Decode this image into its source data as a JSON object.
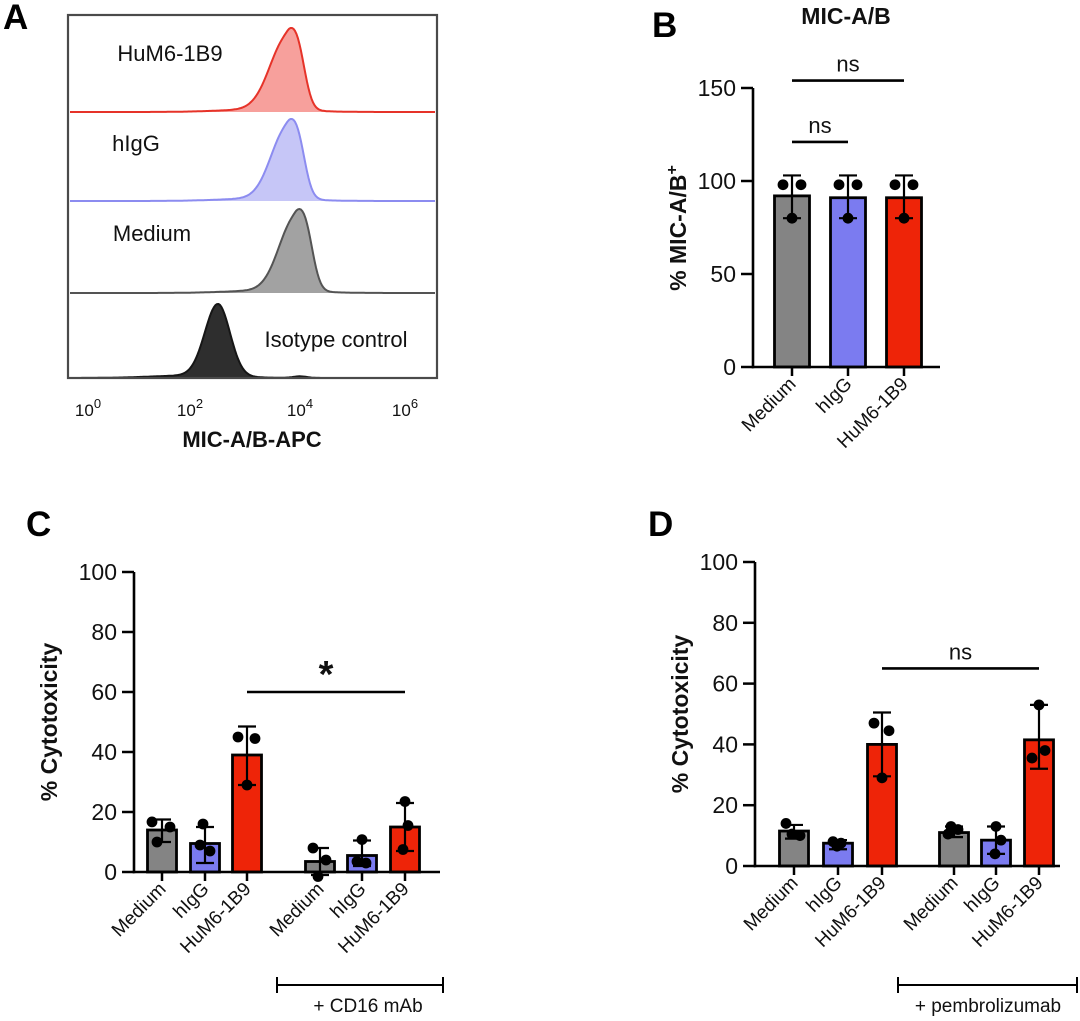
{
  "panel_letters": [
    "A",
    "B",
    "C",
    "D"
  ],
  "colors": {
    "gray": "#848484",
    "blue": "#7b7bf0",
    "red": "#ee2408",
    "ink": "#111111"
  },
  "chart_data": [
    {
      "panel": "A",
      "type": "area",
      "subtype": "flow-cytometry-histogram-stack",
      "xlabel": "MIC-A/B-APC",
      "x_scale": "log10",
      "xticks": [
        {
          "base": "10",
          "exp": "0"
        },
        {
          "base": "10",
          "exp": "2"
        },
        {
          "base": "10",
          "exp": "4"
        },
        {
          "base": "10",
          "exp": "6"
        }
      ],
      "series": [
        {
          "name": "HuM6-1B9",
          "peak_log10": 3.77,
          "stroke": "#e63329",
          "fill": "#f7a09c"
        },
        {
          "name": "hIgG",
          "peak_log10": 3.77,
          "stroke": "#8c8cf0",
          "fill": "#c6c6f7"
        },
        {
          "name": "Medium",
          "peak_log10": 3.92,
          "stroke": "#545454",
          "fill": "#a2a2a2"
        },
        {
          "name": "Isotype control",
          "peak_log10": 2.46,
          "stroke": "#161616",
          "fill": "#2e2e2e"
        }
      ]
    },
    {
      "panel": "B",
      "type": "bar",
      "title": "MIC-A/B",
      "ylabel": "% MIC-A/B",
      "ylabel_sup": "+",
      "ylim": [
        0,
        150
      ],
      "yticks": [
        0,
        50,
        100,
        150
      ],
      "categories": [
        "Medium",
        "hIgG",
        "HuM6-1B9"
      ],
      "bar_colors": [
        "#848484",
        "#7b7bf0",
        "#ee2408"
      ],
      "values": [
        92,
        91,
        91
      ],
      "errors": [
        [
          80,
          103
        ],
        [
          80,
          103
        ],
        [
          80,
          103
        ]
      ],
      "points": [
        [
          [
            98,
            -9
          ],
          [
            98,
            9
          ],
          [
            80,
            0
          ]
        ],
        [
          [
            98,
            -9
          ],
          [
            98,
            9
          ],
          [
            80,
            0
          ]
        ],
        [
          [
            98,
            -9
          ],
          [
            98,
            9
          ],
          [
            80,
            0
          ]
        ]
      ],
      "significance": [
        {
          "from": 0,
          "to": 1,
          "label": "ns",
          "y": 121
        },
        {
          "from": 0,
          "to": 2,
          "label": "ns",
          "y": 154
        }
      ]
    },
    {
      "panel": "C",
      "type": "bar",
      "title": "",
      "ylabel": "% Cytotoxicity",
      "ylim": [
        0,
        100
      ],
      "yticks": [
        0,
        20,
        40,
        60,
        80,
        100
      ],
      "categories": [
        "Medium",
        "hIgG",
        "HuM6-1B9",
        "Medium",
        "hIgG",
        "HuM6-1B9"
      ],
      "bar_colors": [
        "#848484",
        "#7b7bf0",
        "#ee2408",
        "#848484",
        "#7b7bf0",
        "#ee2408"
      ],
      "values": [
        14,
        9.5,
        39,
        3.5,
        5.5,
        15
      ],
      "errors": [
        [
          10,
          17.5
        ],
        [
          3,
          15
        ],
        [
          29,
          48.5
        ],
        [
          -1,
          8
        ],
        [
          2,
          10.5
        ],
        [
          7,
          23
        ]
      ],
      "points": [
        [
          [
            16.7,
            -10
          ],
          [
            15,
            8
          ],
          [
            10,
            -5
          ]
        ],
        [
          [
            16,
            -2
          ],
          [
            9,
            -5
          ],
          [
            7,
            5
          ]
        ],
        [
          [
            45,
            -9
          ],
          [
            44.5,
            8
          ],
          [
            29,
            0
          ]
        ],
        [
          [
            8,
            -7
          ],
          [
            4,
            6
          ],
          [
            -1.5,
            -2
          ]
        ],
        [
          [
            10.8,
            0
          ],
          [
            3.5,
            -5
          ],
          [
            3,
            4
          ]
        ],
        [
          [
            23.5,
            0
          ],
          [
            15.5,
            3
          ],
          [
            7.5,
            -2
          ]
        ]
      ],
      "significance": [
        {
          "from": 2,
          "to": 5,
          "label": "*",
          "y": 60
        }
      ],
      "group_bracket": {
        "label": "+ CD16 mAb",
        "from": 3,
        "to": 5
      }
    },
    {
      "panel": "D",
      "type": "bar",
      "title": "",
      "ylabel": "% Cytotoxicity",
      "ylim": [
        0,
        100
      ],
      "yticks": [
        0,
        20,
        40,
        60,
        80,
        100
      ],
      "categories": [
        "Medium",
        "hIgG",
        "HuM6-1B9",
        "Medium",
        "hIgG",
        "HuM6-1B9"
      ],
      "bar_colors": [
        "#848484",
        "#7b7bf0",
        "#ee2408",
        "#848484",
        "#7b7bf0",
        "#ee2408"
      ],
      "values": [
        11.5,
        7.5,
        40,
        11,
        8.5,
        41.5
      ],
      "errors": [
        [
          9,
          13.5
        ],
        [
          5.5,
          8.5
        ],
        [
          29.5,
          50.5
        ],
        [
          9.5,
          13
        ],
        [
          4,
          13
        ],
        [
          32,
          53
        ]
      ],
      "points": [
        [
          [
            14,
            -8
          ],
          [
            10.5,
            -2
          ],
          [
            10,
            6
          ]
        ],
        [
          [
            8,
            -5
          ],
          [
            7.5,
            3
          ],
          [
            6.5,
            -1
          ]
        ],
        [
          [
            47,
            -8
          ],
          [
            44.5,
            7
          ],
          [
            29,
            0
          ]
        ],
        [
          [
            13,
            -3
          ],
          [
            12,
            4
          ],
          [
            10.5,
            -6
          ]
        ],
        [
          [
            13,
            0
          ],
          [
            8.5,
            5
          ],
          [
            4,
            -1
          ]
        ],
        [
          [
            53,
            0
          ],
          [
            38,
            6
          ],
          [
            35.5,
            -7
          ]
        ]
      ],
      "significance": [
        {
          "from": 2,
          "to": 5,
          "label": "ns",
          "y": 65
        }
      ],
      "group_bracket": {
        "label": "+ pembrolizumab",
        "from": 3,
        "to": 5
      }
    }
  ]
}
